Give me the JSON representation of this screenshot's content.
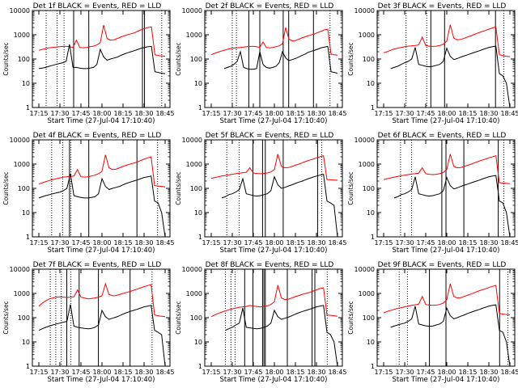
{
  "chart_data": [
    {
      "type": "line",
      "title": "Det 1f BLACK = Events, RED = LLD",
      "xlabel": "Start Time (27-Jul-04 17:10:40)",
      "ylabel": "Counts/sec",
      "x_ticks": [
        "17:15",
        "17:30",
        "17:45",
        "18:00",
        "18:15",
        "18:30",
        "18:45"
      ],
      "y_ticks": [
        "1",
        "10",
        "100",
        "1000",
        "10000"
      ],
      "y_scale": "log",
      "ylim": [
        1,
        10000
      ],
      "series": [
        {
          "name": "LLD",
          "color": "#ff0000",
          "values": [
            230,
            250,
            270,
            290,
            300,
            310,
            320,
            330,
            330,
            320,
            300,
            600,
            300,
            290,
            300,
            320,
            340,
            380,
            480,
            2500,
            700,
            600,
            620,
            700,
            800,
            900,
            1000,
            1100,
            1200,
            1400,
            1600,
            1800,
            2000,
            2100,
            150,
            140,
            135,
            130
          ]
        },
        {
          "name": "Events",
          "color": "#000000",
          "values": [
            40,
            42,
            45,
            50,
            55,
            60,
            65,
            70,
            80,
            400,
            45,
            45,
            42,
            40,
            40,
            42,
            45,
            60,
            250,
            120,
            90,
            100,
            110,
            120,
            140,
            160,
            180,
            200,
            220,
            250,
            280,
            300,
            320,
            330,
            30,
            28,
            26,
            25
          ]
        }
      ]
    },
    {
      "type": "line",
      "title": "Det 2f BLACK = Events, RED = LLD",
      "xlabel": "Start Time (27-Jul-04 17:10:40)",
      "ylabel": "Counts/sec",
      "x_ticks": [
        "17:15",
        "17:30",
        "17:45",
        "18:00",
        "18:15",
        "18:30",
        "18:45"
      ],
      "y_ticks": [
        "1",
        "10",
        "100",
        "1000",
        "10000"
      ],
      "y_scale": "log",
      "ylim": [
        1,
        10000
      ],
      "series": [
        {
          "name": "LLD",
          "color": "#ff0000",
          "values": [
            150,
            170,
            190,
            210,
            230,
            250,
            270,
            280,
            290,
            300,
            310,
            320,
            330,
            330,
            320,
            300,
            500,
            300,
            290,
            300,
            320,
            350,
            420,
            2000,
            650,
            560,
            580,
            650,
            740,
            820,
            920,
            1000,
            1100,
            1250,
            1400,
            1600,
            1700,
            160,
            150,
            145
          ]
        },
        {
          "name": "Events",
          "color": "#000000",
          "values": [
            null,
            null,
            null,
            null,
            40,
            45,
            50,
            60,
            80,
            200,
            45,
            40,
            38,
            38,
            40,
            200,
            60,
            45,
            42,
            45,
            50,
            70,
            200,
            110,
            85,
            95,
            105,
            120,
            140,
            160,
            190,
            210,
            230,
            260,
            290,
            310,
            330,
            30,
            28,
            26
          ]
        }
      ]
    },
    {
      "type": "line",
      "title": "Det 3f BLACK = Events, RED = LLD",
      "xlabel": "Start Time (27-Jul-04 17:10:40)",
      "ylabel": "Counts/sec",
      "x_ticks": [
        "17:15",
        "17:30",
        "17:45",
        "18:00",
        "18:15",
        "18:30",
        "18:45"
      ],
      "y_ticks": [
        "1",
        "10",
        "100",
        "1000",
        "10000"
      ],
      "y_scale": "log",
      "ylim": [
        1,
        10000
      ],
      "series": [
        {
          "name": "LLD",
          "color": "#ff0000",
          "values": [
            180,
            200,
            230,
            260,
            280,
            300,
            320,
            340,
            350,
            360,
            380,
            800,
            360,
            340,
            330,
            340,
            360,
            400,
            550,
            2600,
            720,
            620,
            640,
            720,
            820,
            920,
            1050,
            1200,
            1350,
            1500,
            1700,
            1900,
            2100,
            150,
            140,
            130,
            125
          ]
        },
        {
          "name": "Events",
          "color": "#000000",
          "values": [
            null,
            null,
            40,
            45,
            50,
            60,
            70,
            80,
            100,
            300,
            60,
            55,
            50,
            48,
            50,
            55,
            60,
            80,
            280,
            130,
            95,
            105,
            120,
            135,
            150,
            170,
            190,
            210,
            240,
            270,
            300,
            320,
            340,
            25,
            20,
            10,
            1
          ]
        }
      ]
    },
    {
      "type": "line",
      "title": "Det 4f BLACK = Events, RED = LLD",
      "xlabel": "Start Time (27-Jul-04 17:10:40)",
      "ylabel": "Counts/sec",
      "x_ticks": [
        "17:15",
        "17:30",
        "17:45",
        "18:00",
        "18:15",
        "18:30",
        "18:45"
      ],
      "y_ticks": [
        "1",
        "10",
        "100",
        "1000",
        "10000"
      ],
      "y_scale": "log",
      "ylim": [
        1,
        10000
      ],
      "series": [
        {
          "name": "LLD",
          "color": "#ff0000",
          "values": [
            150,
            170,
            190,
            210,
            230,
            250,
            270,
            290,
            300,
            310,
            320,
            600,
            300,
            290,
            300,
            320,
            350,
            400,
            500,
            2400,
            700,
            600,
            620,
            700,
            800,
            900,
            1000,
            1100,
            1200,
            1400,
            1600,
            1800,
            2000,
            130,
            125,
            120,
            115
          ]
        },
        {
          "name": "Events",
          "color": "#000000",
          "values": [
            40,
            45,
            50,
            55,
            60,
            65,
            70,
            80,
            100,
            400,
            50,
            45,
            42,
            40,
            40,
            42,
            45,
            60,
            250,
            120,
            90,
            100,
            110,
            120,
            140,
            160,
            180,
            200,
            220,
            250,
            280,
            300,
            320,
            30,
            25,
            10,
            1
          ]
        }
      ]
    },
    {
      "type": "line",
      "title": "Det 5f BLACK = Events, RED = LLD",
      "xlabel": "Start Time (27-Jul-04 17:10:40)",
      "ylabel": "Counts/sec",
      "x_ticks": [
        "17:15",
        "17:30",
        "17:45",
        "18:00",
        "18:15",
        "18:30",
        "18:45"
      ],
      "y_ticks": [
        "1",
        "10",
        "100",
        "1000",
        "10000"
      ],
      "y_scale": "log",
      "ylim": [
        1,
        10000
      ],
      "series": [
        {
          "name": "LLD",
          "color": "#ff0000",
          "values": [
            260,
            280,
            300,
            320,
            340,
            360,
            380,
            400,
            420,
            440,
            460,
            700,
            430,
            410,
            400,
            410,
            430,
            470,
            600,
            2600,
            800,
            700,
            720,
            800,
            900,
            1000,
            1150,
            1300,
            1450,
            1600,
            1800,
            2000,
            2200,
            230,
            225,
            220,
            215
          ]
        },
        {
          "name": "Events",
          "color": "#000000",
          "values": [
            null,
            null,
            null,
            40,
            45,
            55,
            60,
            70,
            90,
            250,
            60,
            55,
            50,
            48,
            50,
            55,
            60,
            80,
            300,
            140,
            100,
            110,
            125,
            140,
            160,
            180,
            200,
            230,
            260,
            290,
            320,
            350,
            380,
            30,
            25,
            20,
            1
          ]
        }
      ]
    },
    {
      "type": "line",
      "title": "Det 6f BLACK = Events, RED = LLD",
      "xlabel": "Start Time (27-Jul-04 17:10:40)",
      "ylabel": "Counts/sec",
      "x_ticks": [
        "17:15",
        "17:30",
        "17:45",
        "18:00",
        "18:15",
        "18:30",
        "18:45"
      ],
      "y_ticks": [
        "1",
        "10",
        "100",
        "1000",
        "10000"
      ],
      "y_scale": "log",
      "ylim": [
        1,
        10000
      ],
      "series": [
        {
          "name": "LLD",
          "color": "#ff0000",
          "values": [
            230,
            250,
            270,
            290,
            310,
            330,
            350,
            370,
            390,
            400,
            420,
            700,
            400,
            380,
            370,
            380,
            400,
            450,
            600,
            2600,
            800,
            700,
            720,
            800,
            900,
            1000,
            1150,
            1300,
            1450,
            1600,
            1800,
            2000,
            2200,
            170,
            165,
            160,
            155
          ]
        },
        {
          "name": "Events",
          "color": "#000000",
          "values": [
            null,
            null,
            null,
            40,
            45,
            55,
            60,
            70,
            90,
            300,
            60,
            55,
            50,
            48,
            50,
            55,
            60,
            80,
            280,
            130,
            95,
            105,
            120,
            135,
            150,
            170,
            190,
            210,
            240,
            270,
            300,
            320,
            340,
            30,
            25,
            10,
            1
          ]
        }
      ]
    },
    {
      "type": "line",
      "title": "Det 7f BLACK = Events, RED = LLD",
      "xlabel": "Start Time (27-Jul-04 17:10:40)",
      "ylabel": "Counts/sec",
      "x_ticks": [
        "17:15",
        "17:30",
        "17:45",
        "18:00",
        "18:15",
        "18:30",
        "18:45"
      ],
      "y_ticks": [
        "1",
        "10",
        "100",
        "1000",
        "10000"
      ],
      "y_scale": "log",
      "ylim": [
        1,
        10000
      ],
      "series": [
        {
          "name": "LLD",
          "color": "#ff0000",
          "values": [
            300,
            400,
            500,
            600,
            650,
            700,
            720,
            700,
            680,
            700,
            720,
            1400,
            700,
            650,
            600,
            620,
            650,
            700,
            800,
            2500,
            900,
            800,
            820,
            900,
            1000,
            1100,
            1200,
            1350,
            1500,
            1700,
            1900,
            2100,
            2300,
            130,
            120,
            115,
            110
          ]
        },
        {
          "name": "Events",
          "color": "#000000",
          "values": [
            30,
            35,
            40,
            45,
            50,
            55,
            60,
            65,
            70,
            350,
            45,
            40,
            38,
            36,
            35,
            36,
            40,
            50,
            200,
            110,
            85,
            95,
            105,
            120,
            140,
            160,
            180,
            200,
            220,
            250,
            280,
            300,
            320,
            30,
            25,
            20,
            1
          ]
        }
      ]
    },
    {
      "type": "line",
      "title": "Det 8f BLACK = Events, RED = LLD",
      "xlabel": "Start Time (27-Jul-04 17:10:40)",
      "ylabel": "Counts/sec",
      "x_ticks": [
        "17:15",
        "17:30",
        "17:45",
        "18:00",
        "18:15",
        "18:30",
        "18:45"
      ],
      "y_ticks": [
        "1",
        "10",
        "100",
        "1000",
        "10000"
      ],
      "y_scale": "log",
      "ylim": [
        1,
        10000
      ],
      "series": [
        {
          "name": "LLD",
          "color": "#ff0000",
          "values": [
            110,
            130,
            150,
            170,
            190,
            210,
            230,
            250,
            270,
            280,
            290,
            320,
            300,
            290,
            280,
            290,
            310,
            350,
            450,
            2200,
            650,
            560,
            580,
            650,
            740,
            820,
            920,
            1000,
            1100,
            1250,
            1400,
            1600,
            1700,
            130,
            125,
            120,
            115
          ]
        },
        {
          "name": "Events",
          "color": "#000000",
          "values": [
            null,
            null,
            null,
            null,
            30,
            35,
            40,
            50,
            60,
            250,
            40,
            38,
            36,
            35,
            36,
            40,
            45,
            60,
            200,
            110,
            85,
            95,
            105,
            120,
            140,
            160,
            180,
            200,
            220,
            250,
            280,
            300,
            320,
            25,
            20,
            10,
            1
          ]
        }
      ]
    },
    {
      "type": "line",
      "title": "Det 9f BLACK = Events, RED = LLD",
      "xlabel": "Start Time (27-Jul-04 17:10:40)",
      "ylabel": "Counts/sec",
      "x_ticks": [
        "17:15",
        "17:30",
        "17:45",
        "18:00",
        "18:15",
        "18:30",
        "18:45"
      ],
      "y_ticks": [
        "1",
        "10",
        "100",
        "1000",
        "10000"
      ],
      "y_scale": "log",
      "ylim": [
        1,
        10000
      ],
      "series": [
        {
          "name": "LLD",
          "color": "#ff0000",
          "values": [
            160,
            180,
            200,
            220,
            240,
            260,
            280,
            300,
            320,
            340,
            360,
            750,
            350,
            330,
            320,
            330,
            350,
            400,
            550,
            2500,
            750,
            650,
            670,
            750,
            850,
            950,
            1100,
            1250,
            1400,
            1550,
            1750,
            1950,
            2150,
            150,
            140,
            135,
            130
          ]
        },
        {
          "name": "Events",
          "color": "#000000",
          "values": [
            null,
            null,
            40,
            45,
            50,
            55,
            60,
            70,
            90,
            300,
            55,
            50,
            46,
            44,
            45,
            50,
            55,
            70,
            250,
            120,
            90,
            100,
            115,
            130,
            150,
            170,
            190,
            210,
            240,
            270,
            300,
            320,
            340,
            30,
            25,
            10,
            1
          ]
        }
      ]
    }
  ]
}
